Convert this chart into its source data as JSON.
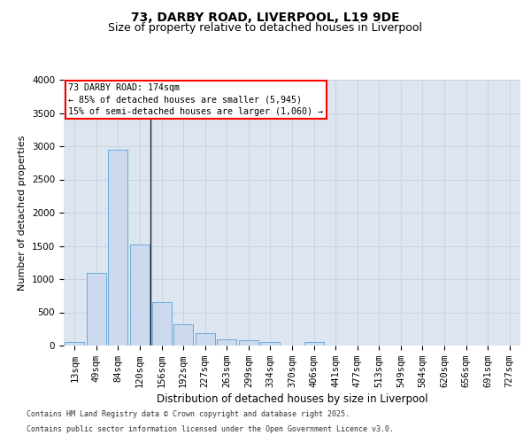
{
  "title1": "73, DARBY ROAD, LIVERPOOL, L19 9DE",
  "title2": "Size of property relative to detached houses in Liverpool",
  "xlabel": "Distribution of detached houses by size in Liverpool",
  "ylabel": "Number of detached properties",
  "categories": [
    "13sqm",
    "49sqm",
    "84sqm",
    "120sqm",
    "156sqm",
    "192sqm",
    "227sqm",
    "263sqm",
    "299sqm",
    "334sqm",
    "370sqm",
    "406sqm",
    "441sqm",
    "477sqm",
    "513sqm",
    "549sqm",
    "584sqm",
    "620sqm",
    "656sqm",
    "691sqm",
    "727sqm"
  ],
  "values": [
    55,
    1100,
    2950,
    1520,
    650,
    320,
    190,
    95,
    75,
    50,
    5,
    55,
    5,
    5,
    5,
    5,
    5,
    5,
    5,
    5,
    5
  ],
  "bar_color": "#cdd9ee",
  "bar_edge_color": "#6aabd6",
  "vline_x": 3.5,
  "annotation_line1": "73 DARBY ROAD: 174sqm",
  "annotation_line2": "← 85% of detached houses are smaller (5,945)",
  "annotation_line3": "15% of semi-detached houses are larger (1,060) →",
  "annotation_box_facecolor": "white",
  "annotation_box_edgecolor": "red",
  "ylim": [
    0,
    4000
  ],
  "yticks": [
    0,
    500,
    1000,
    1500,
    2000,
    2500,
    3000,
    3500,
    4000
  ],
  "grid_color": "#c8d0de",
  "bg_color": "#dce5f0",
  "title1_fontsize": 10,
  "title2_fontsize": 9,
  "ylabel_fontsize": 8,
  "xlabel_fontsize": 8.5,
  "tick_fontsize": 7.5,
  "footer1": "Contains HM Land Registry data © Crown copyright and database right 2025.",
  "footer2": "Contains public sector information licensed under the Open Government Licence v3.0.",
  "footer_fontsize": 6.0
}
